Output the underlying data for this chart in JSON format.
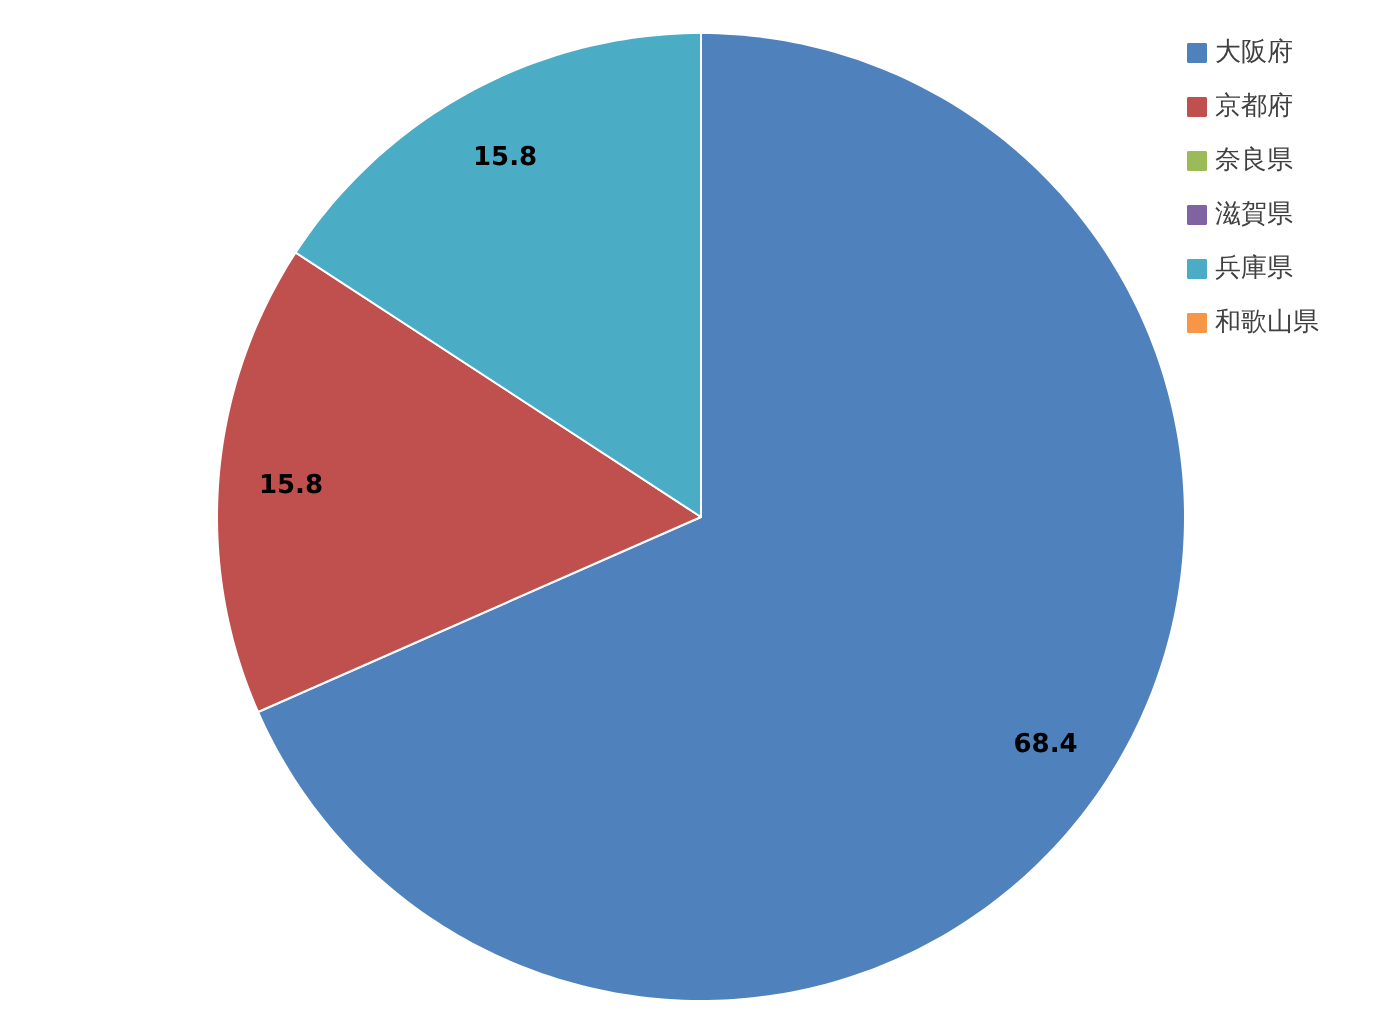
{
  "chart_data": {
    "type": "pie",
    "categories": [
      "大阪府",
      "京都府",
      "奈良県",
      "滋賀県",
      "兵庫県",
      "和歌山県"
    ],
    "values": [
      68.4,
      15.8,
      0,
      0,
      15.8,
      0
    ],
    "colors": [
      "#4f81bd",
      "#c0504d",
      "#9bbb59",
      "#8064a2",
      "#4bacc6",
      "#f79646"
    ],
    "value_labels": [
      "68.4",
      "15.8",
      null,
      null,
      "15.8",
      null
    ],
    "legend": "top right"
  }
}
